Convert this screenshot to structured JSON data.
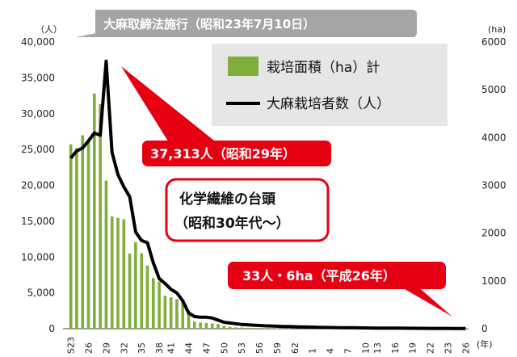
{
  "banner": {
    "text": "大麻取締法施行（昭和23年7月10日）"
  },
  "annotations": {
    "peak": "37,313人（昭和29年）",
    "synthetic": [
      "化学繊維の台頭",
      "（昭和30年代～）"
    ],
    "latest": "33人・6ha（平成26年）"
  },
  "units": {
    "left": "（人）",
    "right": "(ha)",
    "x": "(年)"
  },
  "colors": {
    "bars": "#7FAE3A",
    "line": "#000000",
    "callout": "#E60012",
    "banner": "#A5A5A5",
    "legend_bg": "#E6E6E6"
  },
  "chart_data": {
    "type": "bar+line",
    "x": [
      23,
      24,
      25,
      26,
      27,
      28,
      29,
      30,
      31,
      32,
      33,
      34,
      35,
      36,
      37,
      38,
      39,
      40,
      41,
      42,
      43,
      44,
      45,
      46,
      47,
      48,
      49,
      50,
      51,
      52,
      53,
      54,
      55,
      56,
      57,
      58,
      59,
      60,
      61,
      62,
      63,
      64,
      1,
      2,
      3,
      4,
      5,
      6,
      7,
      8,
      9,
      10,
      11,
      12,
      13,
      14,
      15,
      16,
      17,
      18,
      19,
      20,
      21,
      22,
      23,
      24,
      25,
      26
    ],
    "x_tick_labels": [
      "S23",
      "26",
      "29",
      "32",
      "35",
      "38",
      "41",
      "44",
      "47",
      "50",
      "53",
      "56",
      "59",
      "62",
      "1",
      "4",
      "7",
      "10",
      "13",
      "16",
      "19",
      "22",
      "23",
      "26"
    ],
    "series": [
      {
        "name": "栽培面積（ha）計",
        "type": "bar",
        "axis": "right",
        "values": [
          3860,
          3780,
          4050,
          3900,
          4920,
          4700,
          3100,
          2350,
          2320,
          2290,
          1570,
          1810,
          1580,
          1320,
          1060,
          990,
          690,
          660,
          620,
          590,
          390,
          150,
          130,
          120,
          110,
          100,
          60,
          40,
          30,
          25,
          20,
          18,
          15,
          12,
          10,
          9,
          8,
          7,
          6,
          6,
          5,
          5,
          5,
          5,
          5,
          5,
          5,
          5,
          5,
          5,
          5,
          5,
          5,
          5,
          5,
          5,
          5,
          5,
          5,
          5,
          5,
          5,
          5,
          5,
          5,
          5,
          6,
          6
        ]
      },
      {
        "name": "大麻栽培者数（人）",
        "type": "line",
        "axis": "left",
        "values": [
          23800,
          24800,
          25200,
          26200,
          27300,
          27000,
          37313,
          24600,
          21500,
          19800,
          18400,
          13500,
          12300,
          12000,
          9200,
          7000,
          6300,
          5500,
          5000,
          3900,
          2200,
          1700,
          1600,
          1600,
          1500,
          1200,
          900,
          800,
          700,
          600,
          550,
          500,
          450,
          400,
          380,
          350,
          320,
          300,
          280,
          260,
          240,
          220,
          200,
          180,
          170,
          160,
          150,
          140,
          130,
          120,
          110,
          100,
          95,
          90,
          85,
          80,
          75,
          70,
          65,
          60,
          55,
          50,
          48,
          45,
          40,
          38,
          35,
          33
        ]
      }
    ],
    "y_left": {
      "label": "（人）",
      "ticks": [
        "0",
        "5,000",
        "10,000",
        "15,000",
        "20,000",
        "25,000",
        "30,000",
        "35,000",
        "40,000"
      ],
      "range": [
        0,
        40000
      ]
    },
    "y_right": {
      "label": "(ha)",
      "ticks": [
        "0",
        "1000",
        "2000",
        "3000",
        "4000",
        "5000",
        "6000"
      ],
      "range": [
        0,
        6000
      ]
    },
    "xlabel": "(年)",
    "legend": {
      "position": "top-right",
      "entries": [
        "栽培面積（ha）計",
        "大麻栽培者数（人）"
      ]
    },
    "grid": false
  }
}
